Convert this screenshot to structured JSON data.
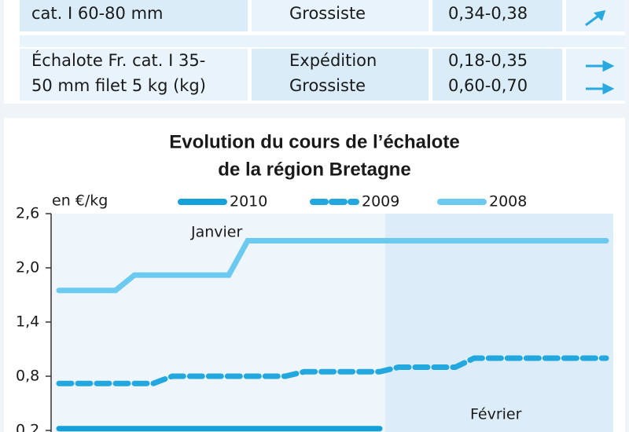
{
  "table": {
    "rows": [
      {
        "product": [
          "cat. I 60-80 mm"
        ],
        "stages": [
          "Grossiste"
        ],
        "prices": [
          "0,34-0,38"
        ]
      },
      {
        "product": [
          "Échalote Fr. cat. I 35-",
          "50 mm filet 5 kg (kg)"
        ],
        "stages": [
          "Expédition",
          "Grossiste"
        ],
        "prices": [
          "0,18-0,35",
          "0,60-0,70"
        ]
      }
    ]
  },
  "chart_data": {
    "type": "line",
    "title": [
      "Evolution du cours de l’échalote",
      "de la région Bretagne"
    ],
    "y_label": "en €/kg",
    "annotations": [
      "Janvier",
      "Février"
    ],
    "categories": [
      null,
      null,
      null,
      null,
      null,
      null,
      null,
      null,
      null,
      null,
      null,
      null,
      null,
      null,
      null,
      null,
      null,
      null,
      null,
      null,
      null,
      null,
      null,
      null,
      null,
      null,
      null,
      null,
      null,
      null
    ],
    "ylim": [
      0.2,
      2.6
    ],
    "yticks": [
      {
        "value": 0.2,
        "label": "0,2"
      },
      {
        "value": 0.8,
        "label": "0,8"
      },
      {
        "value": 1.4,
        "label": "1,4"
      },
      {
        "value": 2.0,
        "label": "2,0"
      },
      {
        "value": 2.6,
        "label": "2,6"
      }
    ],
    "series": [
      {
        "name": "2010",
        "color": "#14a0d8",
        "dash": false,
        "values": [
          0.22,
          0.22,
          0.22,
          0.22,
          0.22,
          0.22,
          0.22,
          0.22,
          0.22,
          0.22,
          0.22,
          0.22,
          0.22,
          0.22,
          0.22,
          0.22,
          0.22,
          0.22,
          null,
          null,
          null,
          null,
          null,
          null,
          null,
          null,
          null,
          null,
          null,
          null
        ]
      },
      {
        "name": "2009",
        "color": "#22a8de",
        "dash": true,
        "values": [
          0.72,
          0.72,
          0.72,
          0.72,
          0.72,
          0.72,
          0.8,
          0.8,
          0.8,
          0.8,
          0.8,
          0.8,
          0.8,
          0.85,
          0.85,
          0.85,
          0.85,
          0.85,
          0.9,
          0.9,
          0.9,
          0.9,
          1.0,
          1.0,
          1.0,
          1.0,
          1.0,
          1.0,
          1.0,
          1.0
        ]
      },
      {
        "name": "2008",
        "color": "#6ccaf0",
        "dash": false,
        "values": [
          1.75,
          1.75,
          1.75,
          1.75,
          1.92,
          1.92,
          1.92,
          1.92,
          1.92,
          1.92,
          2.3,
          2.3,
          2.3,
          2.3,
          2.3,
          2.3,
          2.3,
          2.3,
          2.3,
          2.3,
          2.3,
          2.3,
          2.3,
          2.3,
          2.3,
          2.3,
          2.3,
          2.3,
          2.3,
          2.3
        ]
      }
    ]
  }
}
